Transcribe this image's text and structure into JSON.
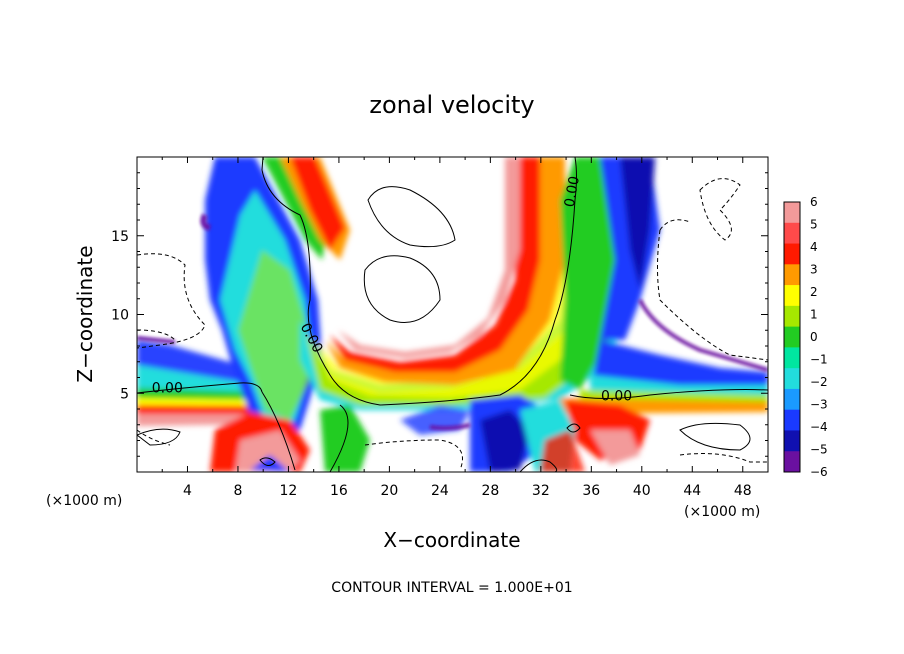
{
  "chart_data": {
    "type": "heatmap",
    "title": "zonal velocity",
    "xlabel": "X−coordinate",
    "ylabel": "Z−coordinate",
    "x_unit_left": "(×1000 m)",
    "x_unit_right": "(×1000 m)",
    "xlim": [
      0,
      50
    ],
    "ylim": [
      0,
      20
    ],
    "x_ticks": [
      4,
      8,
      12,
      16,
      20,
      24,
      28,
      32,
      36,
      40,
      44,
      48
    ],
    "y_ticks": [
      5,
      10,
      15
    ],
    "x_tick_labels": [
      "4",
      "8",
      "12",
      "16",
      "20",
      "24",
      "28",
      "32",
      "36",
      "40",
      "44",
      "48"
    ],
    "y_tick_labels": [
      "5",
      "10",
      "15"
    ],
    "colorbar": {
      "values": [
        6,
        5,
        4,
        3,
        2,
        1,
        0,
        -1,
        -2,
        -3,
        -4,
        -5,
        -6
      ],
      "labels": [
        "6",
        "5",
        "4",
        "3",
        "2",
        "1",
        "0",
        "−1",
        "−2",
        "−3",
        "−4",
        "−5",
        "−6"
      ],
      "colors": [
        "#f39a9a",
        "#ff4a4a",
        "#ff1a00",
        "#ff9a00",
        "#ffff00",
        "#a6e800",
        "#22cc22",
        "#00e6a0",
        "#22dddd",
        "#1a9aff",
        "#1a3aff",
        "#1010b0",
        "#6a10a0"
      ]
    },
    "contour_labels": [
      {
        "text": "0.00",
        "x": 2.4,
        "z": 5.3,
        "angle": 0
      },
      {
        "text": "0.00",
        "x": 13.8,
        "z": 8.5,
        "angle": 62
      },
      {
        "text": "0.00",
        "x": 34.5,
        "z": 17.8,
        "angle": -80
      },
      {
        "text": "0.00",
        "x": 38.0,
        "z": 4.8,
        "angle": 0
      }
    ],
    "contour_interval": "CONTOUR INTERVAL = 1.000E+01"
  }
}
